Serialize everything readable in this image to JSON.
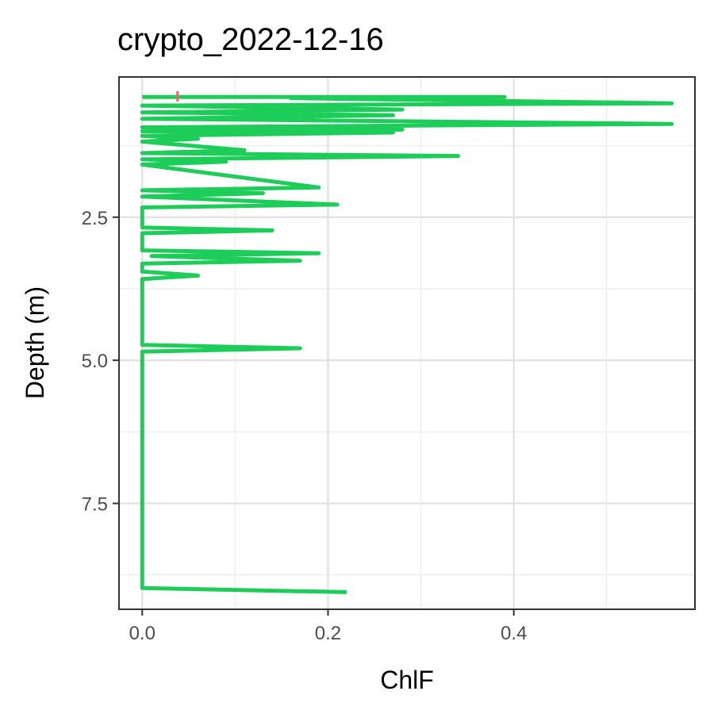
{
  "chart_data": {
    "type": "line",
    "title": "crypto_2022-12-16",
    "xlabel": "ChlF",
    "ylabel": "Depth (m)",
    "xlim": [
      -0.025,
      0.595
    ],
    "ylim": [
      9.35,
      0.05
    ],
    "y_reversed": true,
    "grid": true,
    "x_ticks": [
      "0.0",
      "0.2",
      "0.4"
    ],
    "x_tick_values": [
      0.0,
      0.2,
      0.4
    ],
    "y_ticks": [
      "2.5",
      "5.0",
      "7.5"
    ],
    "y_tick_values": [
      2.5,
      5.0,
      7.5
    ],
    "series": [
      {
        "color": "#1dcc59",
        "points": [
          [
            0.0,
            0.4
          ],
          [
            0.39,
            0.4
          ],
          [
            0.16,
            0.42
          ],
          [
            0.57,
            0.51
          ],
          [
            0.0,
            0.55
          ],
          [
            0.28,
            0.62
          ],
          [
            0.0,
            0.67
          ],
          [
            0.27,
            0.72
          ],
          [
            0.0,
            0.78
          ],
          [
            0.57,
            0.87
          ],
          [
            0.0,
            0.93
          ],
          [
            0.28,
            0.97
          ],
          [
            0.0,
            1.0
          ],
          [
            0.27,
            1.02
          ],
          [
            0.0,
            1.08
          ],
          [
            0.06,
            1.13
          ],
          [
            0.0,
            1.18
          ],
          [
            0.11,
            1.33
          ],
          [
            0.0,
            1.38
          ],
          [
            0.34,
            1.43
          ],
          [
            0.0,
            1.49
          ],
          [
            0.09,
            1.53
          ],
          [
            0.0,
            1.58
          ],
          [
            0.19,
            1.98
          ],
          [
            0.0,
            2.03
          ],
          [
            0.13,
            2.08
          ],
          [
            0.0,
            2.14
          ],
          [
            0.21,
            2.28
          ],
          [
            0.0,
            2.33
          ],
          [
            0.0,
            2.68
          ],
          [
            0.14,
            2.73
          ],
          [
            0.0,
            2.78
          ],
          [
            0.0,
            3.08
          ],
          [
            0.19,
            3.13
          ],
          [
            0.01,
            3.18
          ],
          [
            0.17,
            3.26
          ],
          [
            0.0,
            3.31
          ],
          [
            0.0,
            3.45
          ],
          [
            0.06,
            3.52
          ],
          [
            0.0,
            3.58
          ],
          [
            0.0,
            4.73
          ],
          [
            0.17,
            4.79
          ],
          [
            0.0,
            4.85
          ],
          [
            0.0,
            8.98
          ],
          [
            0.22,
            9.05
          ]
        ]
      },
      {
        "color": "#f06464",
        "points": [
          [
            0.038,
            0.3
          ],
          [
            0.038,
            0.48
          ]
        ]
      }
    ]
  }
}
